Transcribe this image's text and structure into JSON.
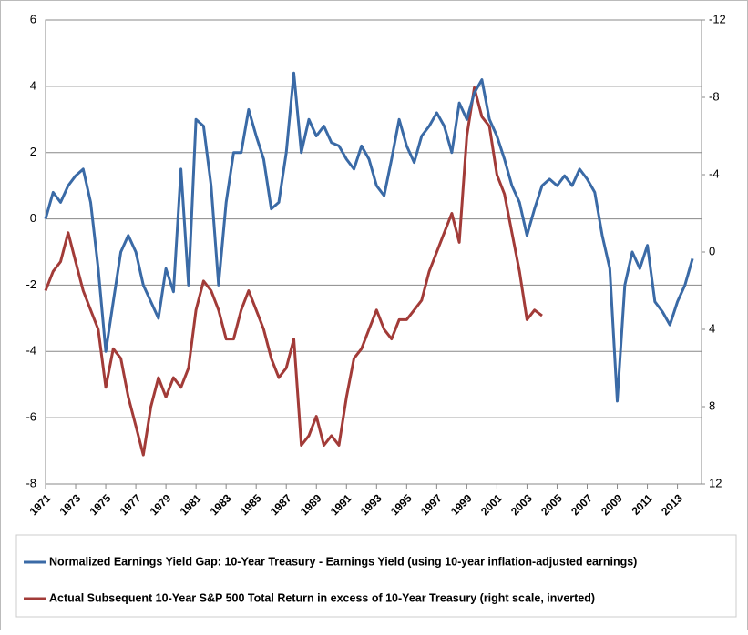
{
  "chart_data": {
    "type": "line",
    "x": [
      1971,
      1971.5,
      1972,
      1972.5,
      1973,
      1973.5,
      1974,
      1974.5,
      1975,
      1975.5,
      1976,
      1976.5,
      1977,
      1977.5,
      1978,
      1978.5,
      1979,
      1979.5,
      1980,
      1980.5,
      1981,
      1981.5,
      1982,
      1982.5,
      1983,
      1983.5,
      1984,
      1984.5,
      1985,
      1985.5,
      1986,
      1986.5,
      1987,
      1987.5,
      1988,
      1988.5,
      1989,
      1989.5,
      1990,
      1990.5,
      1991,
      1991.5,
      1992,
      1992.5,
      1993,
      1993.5,
      1994,
      1994.5,
      1995,
      1995.5,
      1996,
      1996.5,
      1997,
      1997.5,
      1998,
      1998.5,
      1999,
      1999.5,
      2000,
      2000.5,
      2001,
      2001.5,
      2002,
      2002.5,
      2003,
      2003.5,
      2004,
      2004.5,
      2005,
      2005.5,
      2006,
      2006.5,
      2007,
      2007.5,
      2008,
      2008.5,
      2009,
      2009.5,
      2010,
      2010.5,
      2011,
      2011.5,
      2012,
      2012.5,
      2013,
      2013.5,
      2014
    ],
    "series": [
      {
        "name": "Normalized Earnings Yield Gap: 10-Year Treasury - Earnings Yield (using 10-year inflation-adjusted earnings)",
        "color": "#3a6aa6",
        "values": [
          0.0,
          0.8,
          0.5,
          1.0,
          1.3,
          1.5,
          0.5,
          -1.5,
          -4.0,
          -2.5,
          -1.0,
          -0.5,
          -1.0,
          -2.0,
          -2.5,
          -3.0,
          -1.5,
          -2.2,
          1.5,
          -2.0,
          3.0,
          2.8,
          1.0,
          -2.0,
          0.5,
          2.0,
          2.0,
          3.3,
          2.5,
          1.8,
          0.3,
          0.5,
          2.0,
          4.4,
          2.0,
          3.0,
          2.5,
          2.8,
          2.3,
          2.2,
          1.8,
          1.5,
          2.2,
          1.8,
          1.0,
          0.7,
          1.8,
          3.0,
          2.2,
          1.7,
          2.5,
          2.8,
          3.2,
          2.8,
          2.0,
          3.5,
          3.0,
          3.8,
          4.2,
          3.0,
          2.5,
          1.8,
          1.0,
          0.5,
          -0.5,
          0.3,
          1.0,
          1.2,
          1.0,
          1.3,
          1.0,
          1.5,
          1.2,
          0.8,
          -0.5,
          -1.5,
          -5.5,
          -2.0,
          -1.0,
          -1.5,
          -0.8,
          -2.5,
          -2.8,
          -3.2,
          -2.5,
          -2.0,
          -1.2
        ]
      },
      {
        "name": "Actual Subsequent 10-Year S&P 500 Total Return in excess of 10-Year Treasury (right scale, inverted)",
        "color": "#a23b38",
        "axis": "y2",
        "values": [
          2.0,
          1.0,
          0.5,
          -1.0,
          0.5,
          2.0,
          3.0,
          4.0,
          7.0,
          5.0,
          5.5,
          7.5,
          9.0,
          10.5,
          8.0,
          6.5,
          7.5,
          6.5,
          7.0,
          6.0,
          3.0,
          1.5,
          2.0,
          3.0,
          4.5,
          4.5,
          3.0,
          2.0,
          3.0,
          4.0,
          5.5,
          6.5,
          6.0,
          4.5,
          10.0,
          9.5,
          8.5,
          10.0,
          9.5,
          10.0,
          7.5,
          5.5,
          5.0,
          4.0,
          3.0,
          4.0,
          4.5,
          3.5,
          3.5,
          3.0,
          2.5,
          1.0,
          0.0,
          -1.0,
          -2.0,
          -0.5,
          -6.0,
          -8.5,
          -7.0,
          -6.5,
          -4.0,
          -3.0,
          -1.0,
          1.0,
          3.5,
          3.0,
          3.3,
          null,
          null,
          null,
          null,
          null,
          null,
          null,
          null,
          null,
          null,
          null,
          null,
          null,
          null,
          null,
          null,
          null,
          null,
          null,
          null
        ]
      }
    ],
    "xlim": [
      1971,
      2014.6
    ],
    "xticks": [
      1971,
      1973,
      1975,
      1977,
      1979,
      1981,
      1983,
      1985,
      1987,
      1989,
      1991,
      1993,
      1995,
      1997,
      1999,
      2001,
      2003,
      2005,
      2007,
      2009,
      2011,
      2013
    ],
    "ylim": [
      -8,
      6
    ],
    "yticks": [
      -8,
      -6,
      -4,
      -2,
      0,
      2,
      4,
      6
    ],
    "y2lim": [
      -12,
      12
    ],
    "y2ticks": [
      -12,
      -8,
      -4,
      0,
      4,
      8,
      12
    ],
    "y2_inverted": true,
    "grid": true
  }
}
